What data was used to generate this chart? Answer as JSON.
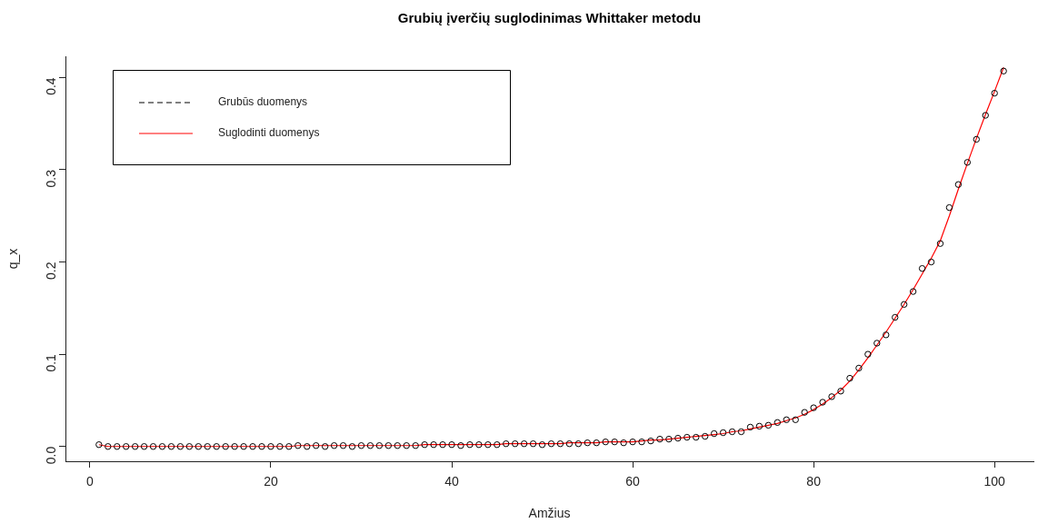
{
  "chart_data": {
    "type": "scatter",
    "title": "Grubių įverčių suglodinimas Whittaker metodu",
    "xlabel": "Amžius",
    "ylabel": "q_x",
    "x": [
      1,
      2,
      3,
      4,
      5,
      6,
      7,
      8,
      9,
      10,
      11,
      12,
      13,
      14,
      15,
      16,
      17,
      18,
      19,
      20,
      21,
      22,
      23,
      24,
      25,
      26,
      27,
      28,
      29,
      30,
      31,
      32,
      33,
      34,
      35,
      36,
      37,
      38,
      39,
      40,
      41,
      42,
      43,
      44,
      45,
      46,
      47,
      48,
      49,
      50,
      51,
      52,
      53,
      54,
      55,
      56,
      57,
      58,
      59,
      60,
      61,
      62,
      63,
      64,
      65,
      66,
      67,
      68,
      69,
      70,
      71,
      72,
      73,
      74,
      75,
      76,
      77,
      78,
      79,
      80,
      81,
      82,
      83,
      84,
      85,
      86,
      87,
      88,
      89,
      90,
      91,
      92,
      93,
      94,
      95,
      96,
      97,
      98,
      99,
      100,
      101
    ],
    "series": [
      {
        "name": "Grubūs duomenys",
        "color": "#000000",
        "marker": "circle",
        "line_style": "dashed",
        "values": [
          0.002,
          0,
          0,
          0,
          0,
          0,
          0,
          0,
          0,
          0,
          0,
          0,
          0,
          0,
          0,
          0,
          0,
          0,
          0,
          0,
          0,
          0,
          0.001,
          0,
          0.001,
          0,
          0.001,
          0.001,
          0,
          0.001,
          0.001,
          0.001,
          0.001,
          0.001,
          0.001,
          0.001,
          0.002,
          0.002,
          0.002,
          0.002,
          0.001,
          0.002,
          0.002,
          0.002,
          0.002,
          0.003,
          0.003,
          0.003,
          0.003,
          0.002,
          0.003,
          0.003,
          0.003,
          0.003,
          0.004,
          0.004,
          0.005,
          0.005,
          0.004,
          0.005,
          0.005,
          0.006,
          0.008,
          0.008,
          0.009,
          0.01,
          0.01,
          0.011,
          0.014,
          0.015,
          0.016,
          0.016,
          0.021,
          0.022,
          0.023,
          0.026,
          0.029,
          0.029,
          0.037,
          0.042,
          0.048,
          0.054,
          0.06,
          0.074,
          0.085,
          0.1,
          0.112,
          0.121,
          0.14,
          0.154,
          0.168,
          0.193,
          0.2,
          0.22,
          0.259,
          0.284,
          0.308,
          0.333,
          0.359,
          0.383,
          0.407
        ]
      },
      {
        "name": "Suglodinti duomenys",
        "type": "line",
        "color": "#ff0000",
        "marker": "none",
        "line_style": "solid",
        "values": [
          0.002,
          0,
          0,
          0,
          0,
          0,
          0,
          0,
          0,
          0,
          0,
          0,
          0,
          0,
          0,
          0,
          0,
          0,
          0,
          0,
          0,
          0,
          0.001,
          0.001,
          0.001,
          0.001,
          0.001,
          0.001,
          0.001,
          0.001,
          0.001,
          0.001,
          0.001,
          0.001,
          0.001,
          0.001,
          0.002,
          0.002,
          0.002,
          0.002,
          0.002,
          0.002,
          0.002,
          0.002,
          0.002,
          0.003,
          0.003,
          0.003,
          0.003,
          0.003,
          0.003,
          0.003,
          0.004,
          0.004,
          0.004,
          0.004,
          0.005,
          0.005,
          0.005,
          0.005,
          0.006,
          0.007,
          0.007,
          0.008,
          0.009,
          0.01,
          0.011,
          0.012,
          0.013,
          0.014,
          0.016,
          0.017,
          0.019,
          0.021,
          0.023,
          0.025,
          0.028,
          0.031,
          0.035,
          0.04,
          0.046,
          0.053,
          0.061,
          0.071,
          0.083,
          0.096,
          0.11,
          0.124,
          0.139,
          0.154,
          0.17,
          0.187,
          0.204,
          0.223,
          0.25,
          0.279,
          0.307,
          0.334,
          0.36,
          0.385,
          0.411
        ]
      }
    ],
    "xlim": [
      -2.7,
      104.3
    ],
    "ylim": [
      -0.016,
      0.423
    ],
    "xticks": [
      0,
      20,
      40,
      60,
      80,
      100
    ],
    "yticks": [
      {
        "value": 0,
        "label": "0.0"
      },
      0.1,
      0.2,
      0.3,
      0.4
    ],
    "grid": false,
    "legend": "top left"
  }
}
